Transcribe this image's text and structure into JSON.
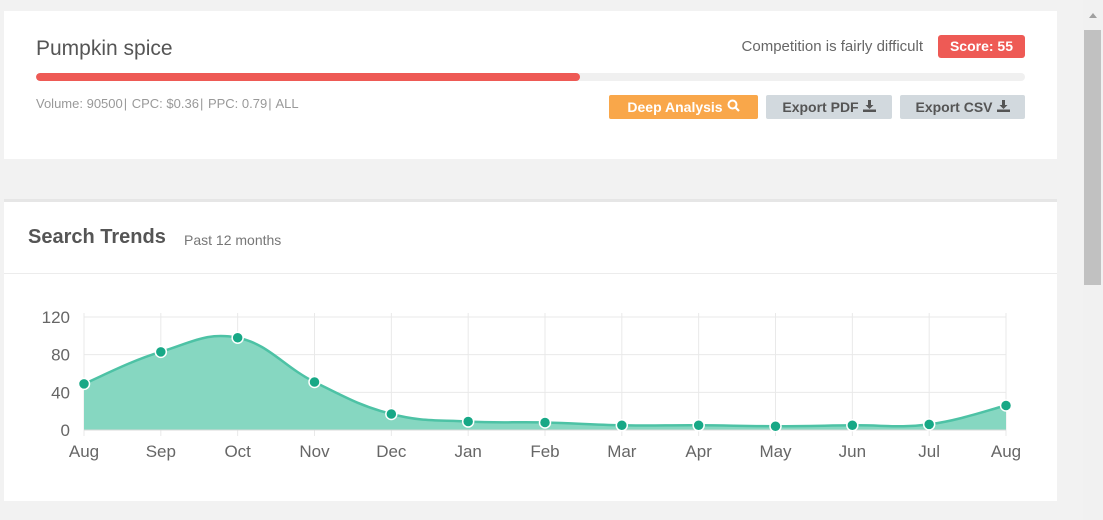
{
  "keyword": {
    "title": "Pumpkin spice",
    "competition_text": "Competition is fairly difficult",
    "score_label": "Score: 55",
    "score_value": 55,
    "score_color": "#ee5a55",
    "meta": {
      "volume": "Volume: 90500",
      "cpc": " CPC: $0.36",
      "ppc": " PPC: 0.79",
      "all": " ALL",
      "sep": "|"
    },
    "buttons": {
      "deep_analysis": "Deep Analysis",
      "export_pdf": "Export PDF",
      "export_csv": "Export CSV"
    }
  },
  "trends": {
    "title": "Search Trends",
    "subtitle": "Past 12 months"
  },
  "chart_data": {
    "type": "area",
    "title": "",
    "xlabel": "",
    "ylabel": "",
    "categories": [
      "Aug",
      "Sep",
      "Oct",
      "Nov",
      "Dec",
      "Jan",
      "Feb",
      "Mar",
      "Apr",
      "May",
      "Jun",
      "Jul",
      "Aug"
    ],
    "series": [
      {
        "values": [
          49,
          83,
          98,
          51,
          17,
          9,
          8,
          5,
          5,
          4,
          5,
          6,
          26
        ]
      }
    ],
    "ylim": [
      0,
      120
    ],
    "yticks": [
      0,
      40,
      80,
      120
    ],
    "grid": true,
    "line_color": "#4dc2a5",
    "fill_color": "#86d7c1",
    "point_color": "#17a886"
  }
}
